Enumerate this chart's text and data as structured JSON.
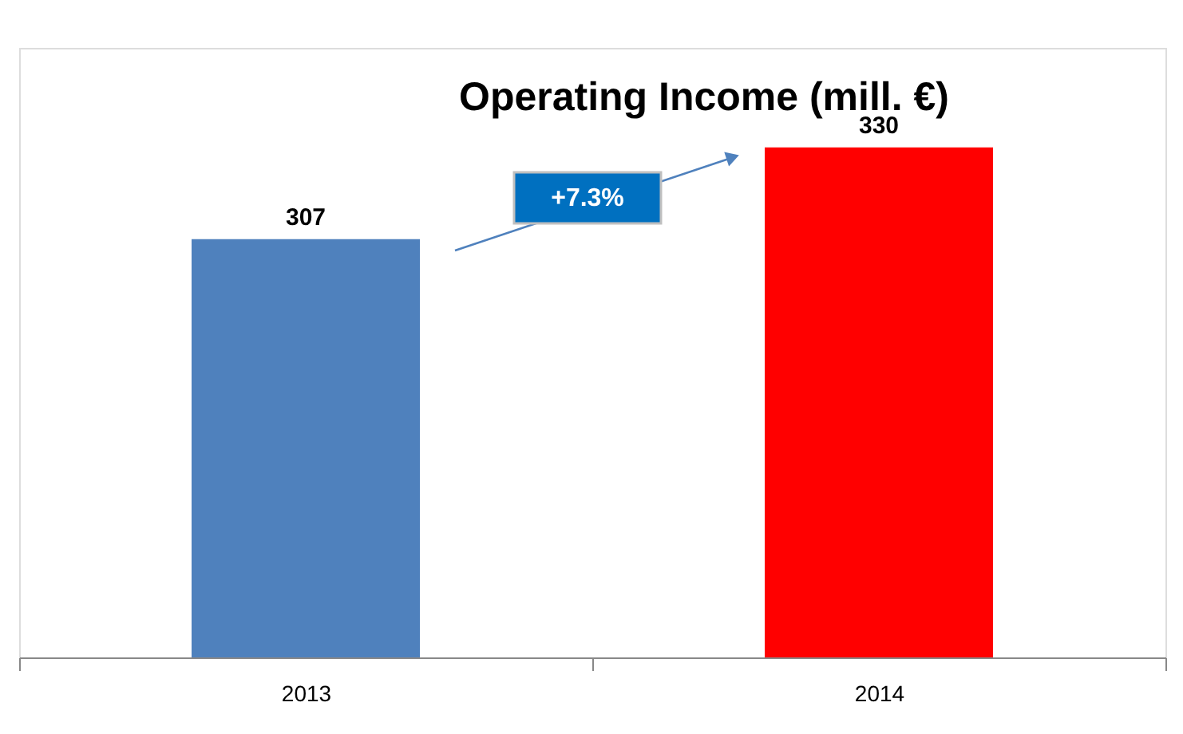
{
  "chart_data": {
    "type": "bar",
    "title": "Operating Income (mill. €)",
    "categories": [
      "2013",
      "2014"
    ],
    "values": [
      307,
      330
    ],
    "colors": [
      "#4f81bd",
      "#ff0000"
    ],
    "ylim": [
      202,
      355
    ],
    "data_labels": true,
    "annotations": [
      "+7.3%"
    ],
    "grid": false
  }
}
